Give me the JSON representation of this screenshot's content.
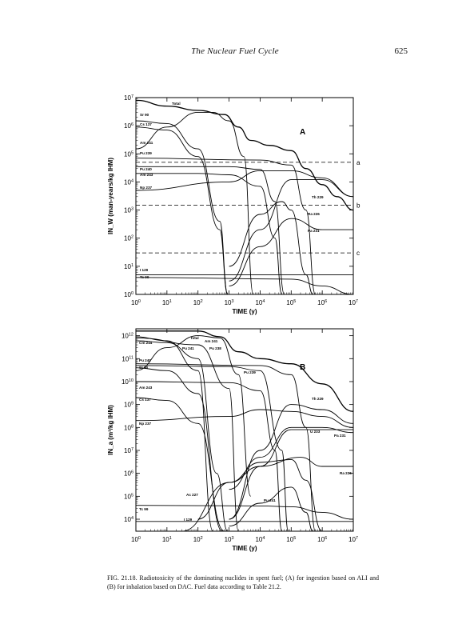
{
  "page": {
    "running_title": "The Nuclear Fuel Cycle",
    "page_number": "625"
  },
  "caption": "FIG. 21.18. Radiotoxicity of the dominating nuclides in spent fuel; (A) for ingestion based on ALI and (B) for inhalation based on DAC. Fuel data according to Table 21.2.",
  "chart_data": [
    {
      "type": "line",
      "panel": "A",
      "xlabel": "TIME (y)",
      "ylabel": "IN_W (man-years/kg IHM)",
      "xscale": "log",
      "yscale": "log",
      "xlim": [
        1,
        10000000
      ],
      "ylim": [
        1,
        10000000
      ],
      "x_ticks": [
        "10^0",
        "10^1",
        "10^2",
        "10^3",
        "10^4",
        "10^5",
        "10^6",
        "10^7"
      ],
      "y_ticks": [
        "10^0",
        "10^1",
        "10^2",
        "10^3",
        "10^4",
        "10^5",
        "10^6",
        "10^7"
      ],
      "reference_levels": [
        {
          "label": "a",
          "y": 50000
        },
        {
          "label": "b",
          "y": 1500
        },
        {
          "label": "c",
          "y": 30
        }
      ],
      "series": [
        {
          "name": "Total",
          "points": [
            [
              1,
              8000000
            ],
            [
              10,
              5000000
            ],
            [
              100,
              3500000
            ],
            [
              700,
              2500000
            ],
            [
              2000,
              900000
            ],
            [
              5000,
              300000
            ],
            [
              20000,
              200000
            ],
            [
              100000,
              130000
            ],
            [
              300000,
              30000
            ],
            [
              1000000,
              8000
            ],
            [
              3000000,
              3000
            ],
            [
              10000000,
              1000
            ]
          ]
        },
        {
          "name": "Sr 90",
          "points": [
            [
              1,
              1500000
            ],
            [
              10,
              1200000
            ],
            [
              100,
              150000
            ],
            [
              500,
              400
            ],
            [
              900,
              1
            ]
          ]
        },
        {
          "name": "Cs 137",
          "points": [
            [
              1,
              900000
            ],
            [
              10,
              700000
            ],
            [
              100,
              80000
            ],
            [
              500,
              200
            ],
            [
              900,
              1
            ]
          ]
        },
        {
          "name": "Am 241",
          "points": [
            [
              1,
              150000
            ],
            [
              10,
              900000
            ],
            [
              100,
              3000000
            ],
            [
              300,
              3000000
            ],
            [
              1000,
              1500000
            ],
            [
              3000,
              80000
            ],
            [
              6000,
              1
            ]
          ]
        },
        {
          "name": "Pu 239",
          "points": [
            [
              1,
              70000
            ],
            [
              10000,
              60000
            ],
            [
              100000,
              40000
            ],
            [
              300000,
              1000
            ],
            [
              600000,
              1
            ]
          ]
        },
        {
          "name": "Pu 240",
          "points": [
            [
              1,
              35000
            ],
            [
              1000,
              35000
            ],
            [
              10000,
              28000
            ],
            [
              30000,
              2000
            ],
            [
              60000,
              1
            ]
          ]
        },
        {
          "name": "Am 243",
          "points": [
            [
              1,
              20000
            ],
            [
              100,
              20000
            ],
            [
              1000,
              18000
            ],
            [
              10000,
              7000
            ],
            [
              30000,
              100
            ],
            [
              50000,
              1
            ]
          ]
        },
        {
          "name": "Np 237",
          "points": [
            [
              1,
              5000
            ],
            [
              1000,
              10000
            ],
            [
              10000,
              25000
            ],
            [
              100000,
              25000
            ],
            [
              1000000,
              14000
            ],
            [
              10000000,
              3000
            ]
          ]
        },
        {
          "name": "Th 229",
          "points": [
            [
              1000,
              3
            ],
            [
              10000,
              200
            ],
            [
              100000,
              12000
            ],
            [
              1000000,
              12000
            ],
            [
              10000000,
              3000
            ]
          ]
        },
        {
          "name": "Ra 226",
          "points": [
            [
              1000,
              10
            ],
            [
              10000,
              700
            ],
            [
              50000,
              2000
            ],
            [
              100000,
              1000
            ],
            [
              300000,
              5
            ],
            [
              500000,
              1
            ]
          ]
        },
        {
          "name": "Pa 231",
          "points": [
            [
              1000,
              2
            ],
            [
              10000,
              50
            ],
            [
              100000,
              500
            ],
            [
              1000000,
              200
            ],
            [
              10000000,
              200
            ]
          ]
        },
        {
          "name": "I 129",
          "points": [
            [
              1,
              5
            ],
            [
              10000000,
              5
            ]
          ]
        },
        {
          "name": "Tc 99",
          "points": [
            [
              1,
              4
            ],
            [
              100000,
              3.5
            ],
            [
              1000000,
              2
            ],
            [
              10000000,
              1
            ]
          ]
        }
      ]
    },
    {
      "type": "line",
      "panel": "B",
      "xlabel": "TIME (y)",
      "ylabel": "IN_a (m³/kg IHM)",
      "xscale": "log",
      "yscale": "log",
      "xlim": [
        1,
        10000000
      ],
      "ylim": [
        3000,
        2000000000000
      ],
      "x_ticks": [
        "10^0",
        "10^1",
        "10^2",
        "10^3",
        "10^4",
        "10^5",
        "10^6",
        "10^7"
      ],
      "y_ticks": [
        "10^4",
        "10^5",
        "10^6",
        "10^7",
        "10^8",
        "10^9",
        "10^10",
        "10^11",
        "10^12"
      ],
      "series": [
        {
          "name": "Total",
          "points": [
            [
              1,
              1600000000000
            ],
            [
              100,
              1600000000000
            ],
            [
              500,
              900000000000
            ],
            [
              2000,
              200000000000
            ],
            [
              10000,
              100000000000
            ],
            [
              100000,
              60000000000
            ],
            [
              1000000,
              8000000000
            ],
            [
              10000000,
              500000000
            ]
          ]
        },
        {
          "name": "Cm 244",
          "points": [
            [
              1,
              600000000000
            ],
            [
              10,
              500000000000
            ],
            [
              100,
              100000000000
            ],
            [
              400,
              1000000
            ],
            [
              900,
              3000
            ]
          ]
        },
        {
          "name": "Am 241",
          "points": [
            [
              1,
              30000000000
            ],
            [
              10,
              300000000000
            ],
            [
              100,
              1000000000000
            ],
            [
              500,
              800000000000
            ],
            [
              2000,
              20000000000
            ],
            [
              5000,
              100000
            ]
          ]
        },
        {
          "name": "Pu 241",
          "points": [
            [
              1,
              900000000000
            ],
            [
              10,
              600000000000
            ],
            [
              100,
              30000000000
            ],
            [
              300,
              3000
            ]
          ]
        },
        {
          "name": "Pu 238",
          "points": [
            [
              1,
              800000000000
            ],
            [
              100,
              400000000000
            ],
            [
              1000,
              5000000000
            ],
            [
              2000,
              3000
            ]
          ]
        },
        {
          "name": "Pu 239",
          "points": [
            [
              1,
              60000000000
            ],
            [
              10000,
              50000000000
            ],
            [
              100000,
              20000000000
            ],
            [
              300000,
              100000000
            ],
            [
              600000,
              3000
            ]
          ]
        },
        {
          "name": "Pu 240",
          "points": [
            [
              1,
              50000000000
            ],
            [
              1000,
              45000000000
            ],
            [
              10000,
              30000000000
            ],
            [
              50000,
              10000000
            ],
            [
              80000,
              3000
            ]
          ]
        },
        {
          "name": "Sr 90",
          "points": [
            [
              1,
              40000000000
            ],
            [
              10,
              30000000000
            ],
            [
              100,
              3000000000
            ],
            [
              600,
              3000
            ]
          ]
        },
        {
          "name": "Am 243",
          "points": [
            [
              1,
              10000000000
            ],
            [
              1000,
              9000000000
            ],
            [
              10000,
              4000000000
            ],
            [
              30000,
              10000000
            ],
            [
              50000,
              3000
            ]
          ]
        },
        {
          "name": "Cs 137",
          "points": [
            [
              1,
              2000000000
            ],
            [
              10,
              1500000000
            ],
            [
              100,
              150000000
            ],
            [
              700,
              3000
            ]
          ]
        },
        {
          "name": "Np 237",
          "points": [
            [
              1,
              200000000
            ],
            [
              1000,
              300000000
            ],
            [
              10000,
              600000000
            ],
            [
              100000,
              500000000
            ],
            [
              1000000,
              300000000
            ],
            [
              10000000,
              100000000
            ]
          ]
        },
        {
          "name": "Th 229",
          "points": [
            [
              1000,
              10000
            ],
            [
              10000,
              10000000
            ],
            [
              100000,
              1000000000
            ],
            [
              1000000,
              600000000
            ],
            [
              10000000,
              150000000
            ]
          ]
        },
        {
          "name": "U 233",
          "points": [
            [
              1000,
              200000
            ],
            [
              10000,
              5000000
            ],
            [
              100000,
              100000000
            ],
            [
              1000000,
              100000000
            ],
            [
              10000000,
              60000000
            ]
          ]
        },
        {
          "name": "Pa 231",
          "points": [
            [
              1000,
              10000
            ],
            [
              10000,
              2000000
            ],
            [
              100000,
              80000000
            ],
            [
              1000000,
              80000000
            ],
            [
              10000000,
              80000000
            ]
          ]
        },
        {
          "name": "Ra 226",
          "points": [
            [
              100,
              10000
            ],
            [
              1000,
              400000
            ],
            [
              10000,
              2000000
            ],
            [
              200000,
              5000000
            ],
            [
              1000000,
              2000000
            ],
            [
              10000000,
              2000000
            ]
          ]
        },
        {
          "name": "Ac 227",
          "points": [
            [
              30,
              3000
            ],
            [
              1000,
              400000
            ],
            [
              10000,
              3000000
            ],
            [
              100000,
              4000000
            ],
            [
              300000,
              500000
            ],
            [
              1000000,
              3000
            ]
          ]
        },
        {
          "name": "Pu 241 (late)",
          "points": [
            [
              1000,
              5000
            ],
            [
              10000,
              50000
            ],
            [
              100000,
              250000
            ],
            [
              300000,
              20000
            ],
            [
              500000,
              3000
            ]
          ]
        },
        {
          "name": "Tc 99",
          "points": [
            [
              1,
              40000
            ],
            [
              10000,
              38000
            ],
            [
              100000,
              35000
            ],
            [
              1000000,
              20000
            ],
            [
              10000000,
              10000
            ]
          ]
        },
        {
          "name": "I 129",
          "points": [
            [
              1,
              8000
            ],
            [
              10000000,
              8000
            ]
          ]
        }
      ]
    }
  ]
}
